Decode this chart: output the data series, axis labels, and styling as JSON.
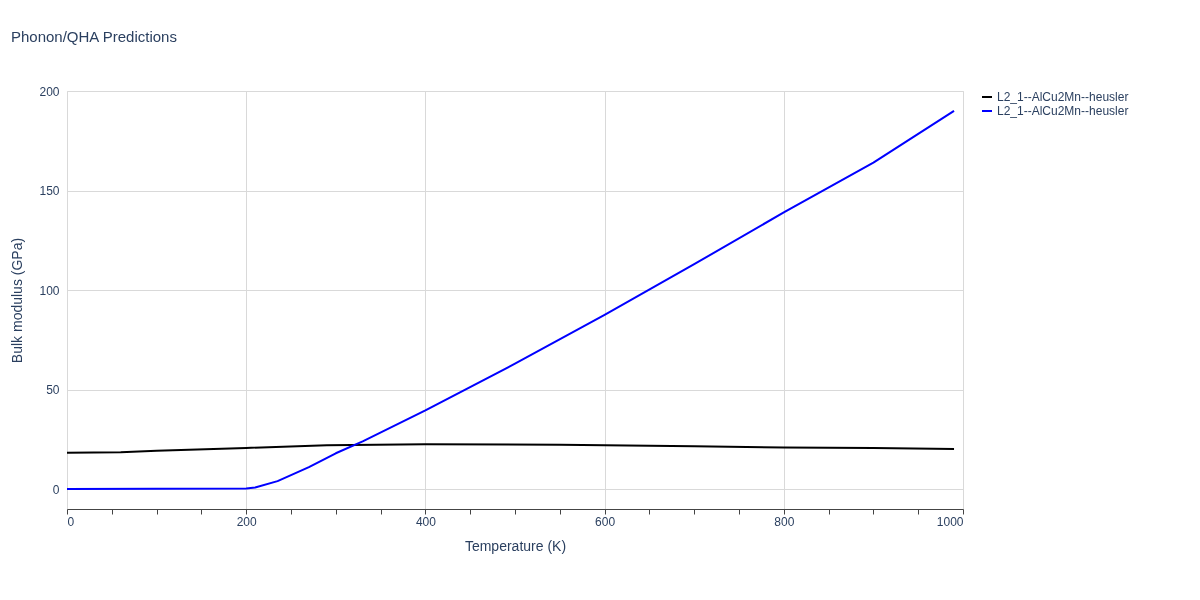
{
  "chart_data": {
    "type": "line",
    "title": "Phonon/QHA Predictions",
    "xlabel": "Temperature (K)",
    "ylabel": "Bulk modulus (GPa)",
    "xlim": [
      0,
      1000
    ],
    "ylim": [
      -10,
      200
    ],
    "xticks": [
      0,
      {
        "value": 50,
        "label": null
      },
      {
        "value": 100,
        "label": null
      },
      {
        "value": 150,
        "label": null
      },
      200,
      {
        "value": 250,
        "label": null
      },
      {
        "value": 300,
        "label": null
      },
      {
        "value": 350,
        "label": null
      },
      400,
      {
        "value": 450,
        "label": null
      },
      {
        "value": 500,
        "label": null
      },
      {
        "value": 550,
        "label": null
      },
      600,
      {
        "value": 650,
        "label": null
      },
      {
        "value": 700,
        "label": null
      },
      {
        "value": 750,
        "label": null
      },
      800,
      {
        "value": 850,
        "label": null
      },
      {
        "value": 900,
        "label": null
      },
      {
        "value": 950,
        "label": null
      },
      1000
    ],
    "yticks": [
      0,
      50,
      100,
      150,
      200
    ],
    "grid": true,
    "legend": "top right",
    "series": [
      {
        "name": "L2_1--AlCu2Mn--heusler",
        "color": "#000000",
        "x": [
          0,
          60,
          100,
          200,
          290,
          400,
          550,
          600,
          700,
          800,
          900,
          990
        ],
        "values": [
          18.2,
          18.5,
          19.3,
          20.7,
          22.0,
          22.5,
          22.3,
          22.0,
          21.5,
          20.9,
          20.6,
          20.2
        ]
      },
      {
        "name": "L2_1--AlCu2Mn--heusler",
        "color": "#0000ff",
        "x": [
          0,
          100,
          200,
          210,
          235,
          270,
          300,
          330,
          400,
          500,
          600,
          700,
          800,
          900,
          990
        ],
        "values": [
          0,
          0.2,
          0.3,
          0.8,
          4,
          11,
          18,
          24,
          39.5,
          63,
          87.5,
          113,
          139,
          164,
          190
        ]
      }
    ]
  }
}
